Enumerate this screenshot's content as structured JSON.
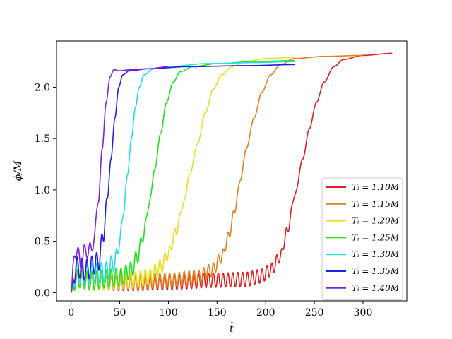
{
  "chart_data": {
    "type": "line",
    "xlabel": "t̃",
    "ylabel": "ϕ/M",
    "xlim": [
      -15,
      345
    ],
    "ylim": [
      -0.08,
      2.45
    ],
    "x_ticks": [
      0,
      50,
      100,
      150,
      200,
      250,
      300
    ],
    "x_tick_labels": [
      "0",
      "50",
      "100",
      "150",
      "200",
      "250",
      "300"
    ],
    "y_ticks": [
      0.0,
      0.5,
      1.0,
      1.5,
      2.0
    ],
    "y_tick_labels": [
      "0.0",
      "0.5",
      "1.0",
      "1.5",
      "2.0"
    ],
    "legend_position": "lower-right",
    "grid": false,
    "series": [
      {
        "name": "T_i = 1.10M",
        "color": "#e02020",
        "t_end": 330,
        "plateau": 2.33,
        "osc_amp": 0.08,
        "osc_period": 5.0,
        "points": [
          [
            0,
            0
          ],
          [
            5,
            0.12
          ],
          [
            20,
            0.1
          ],
          [
            60,
            0.09
          ],
          [
            100,
            0.1
          ],
          [
            150,
            0.12
          ],
          [
            180,
            0.13
          ],
          [
            195,
            0.16
          ],
          [
            205,
            0.22
          ],
          [
            215,
            0.35
          ],
          [
            222,
            0.6
          ],
          [
            230,
            0.95
          ],
          [
            238,
            1.3
          ],
          [
            245,
            1.6
          ],
          [
            252,
            1.85
          ],
          [
            260,
            2.05
          ],
          [
            270,
            2.2
          ],
          [
            280,
            2.27
          ],
          [
            300,
            2.31
          ],
          [
            330,
            2.33
          ]
        ]
      },
      {
        "name": "T_i = 1.15M",
        "color": "#e08020",
        "t_end": 300,
        "plateau": 2.31,
        "osc_amp": 0.08,
        "osc_period": 5.0,
        "points": [
          [
            0,
            0
          ],
          [
            5,
            0.12
          ],
          [
            20,
            0.1
          ],
          [
            60,
            0.1
          ],
          [
            100,
            0.12
          ],
          [
            130,
            0.15
          ],
          [
            145,
            0.22
          ],
          [
            155,
            0.35
          ],
          [
            162,
            0.55
          ],
          [
            168,
            0.8
          ],
          [
            174,
            1.1
          ],
          [
            180,
            1.4
          ],
          [
            188,
            1.7
          ],
          [
            196,
            1.95
          ],
          [
            205,
            2.12
          ],
          [
            215,
            2.22
          ],
          [
            230,
            2.28
          ],
          [
            260,
            2.3
          ],
          [
            300,
            2.31
          ]
        ]
      },
      {
        "name": "T_i = 1.20M",
        "color": "#e8e020",
        "t_end": 230,
        "plateau": 2.29,
        "osc_amp": 0.09,
        "osc_period": 5.0,
        "points": [
          [
            0,
            0
          ],
          [
            5,
            0.13
          ],
          [
            20,
            0.1
          ],
          [
            60,
            0.12
          ],
          [
            80,
            0.15
          ],
          [
            92,
            0.25
          ],
          [
            100,
            0.38
          ],
          [
            108,
            0.6
          ],
          [
            115,
            0.85
          ],
          [
            122,
            1.15
          ],
          [
            130,
            1.45
          ],
          [
            138,
            1.75
          ],
          [
            146,
            1.98
          ],
          [
            155,
            2.12
          ],
          [
            165,
            2.2
          ],
          [
            180,
            2.25
          ],
          [
            200,
            2.28
          ],
          [
            230,
            2.29
          ]
        ]
      },
      {
        "name": "T_i = 1.25M",
        "color": "#20e020",
        "t_end": 230,
        "plateau": 2.26,
        "osc_amp": 0.1,
        "osc_period": 5.0,
        "points": [
          [
            0,
            0
          ],
          [
            5,
            0.14
          ],
          [
            20,
            0.12
          ],
          [
            50,
            0.15
          ],
          [
            62,
            0.22
          ],
          [
            68,
            0.35
          ],
          [
            74,
            0.55
          ],
          [
            80,
            0.85
          ],
          [
            86,
            1.2
          ],
          [
            92,
            1.55
          ],
          [
            98,
            1.85
          ],
          [
            105,
            2.05
          ],
          [
            112,
            2.15
          ],
          [
            125,
            2.2
          ],
          [
            150,
            2.23
          ],
          [
            190,
            2.25
          ],
          [
            230,
            2.26
          ]
        ]
      },
      {
        "name": "T_i = 1.30M",
        "color": "#20e0e0",
        "t_end": 230,
        "plateau": 2.25,
        "osc_amp": 0.12,
        "osc_period": 5.0,
        "points": [
          [
            0,
            0
          ],
          [
            5,
            0.2
          ],
          [
            15,
            0.18
          ],
          [
            35,
            0.2
          ],
          [
            45,
            0.3
          ],
          [
            50,
            0.5
          ],
          [
            54,
            0.8
          ],
          [
            58,
            1.15
          ],
          [
            62,
            1.5
          ],
          [
            66,
            1.8
          ],
          [
            70,
            2.0
          ],
          [
            75,
            2.12
          ],
          [
            85,
            2.18
          ],
          [
            100,
            2.2
          ],
          [
            140,
            2.23
          ],
          [
            190,
            2.24
          ],
          [
            230,
            2.25
          ]
        ]
      },
      {
        "name": "T_i = 1.35M",
        "color": "#2020e0",
        "t_end": 230,
        "plateau": 2.22,
        "osc_amp": 0.13,
        "osc_period": 5.0,
        "points": [
          [
            0,
            0
          ],
          [
            5,
            0.25
          ],
          [
            15,
            0.22
          ],
          [
            28,
            0.3
          ],
          [
            33,
            0.55
          ],
          [
            37,
            0.9
          ],
          [
            41,
            1.3
          ],
          [
            45,
            1.7
          ],
          [
            49,
            2.0
          ],
          [
            53,
            2.12
          ],
          [
            60,
            2.16
          ],
          [
            80,
            2.18
          ],
          [
            120,
            2.2
          ],
          [
            180,
            2.21
          ],
          [
            230,
            2.22
          ]
        ]
      },
      {
        "name": "T_i = 1.40M",
        "color": "#8020e0",
        "t_end": 100,
        "plateau": 2.2,
        "osc_amp": 0.13,
        "osc_period": 6.0,
        "points": [
          [
            0,
            0
          ],
          [
            4,
            0.42
          ],
          [
            10,
            0.3
          ],
          [
            16,
            0.42
          ],
          [
            20,
            0.4
          ],
          [
            24,
            0.55
          ],
          [
            28,
            0.9
          ],
          [
            32,
            1.4
          ],
          [
            36,
            1.85
          ],
          [
            40,
            2.1
          ],
          [
            44,
            2.17
          ],
          [
            50,
            2.16
          ],
          [
            60,
            2.17
          ],
          [
            80,
            2.18
          ],
          [
            100,
            2.2
          ]
        ]
      }
    ],
    "legend_labels": [
      "Tᵢ = 1.10M",
      "Tᵢ = 1.15M",
      "Tᵢ = 1.20M",
      "Tᵢ = 1.25M",
      "Tᵢ = 1.30M",
      "Tᵢ = 1.35M",
      "Tᵢ = 1.40M"
    ]
  }
}
